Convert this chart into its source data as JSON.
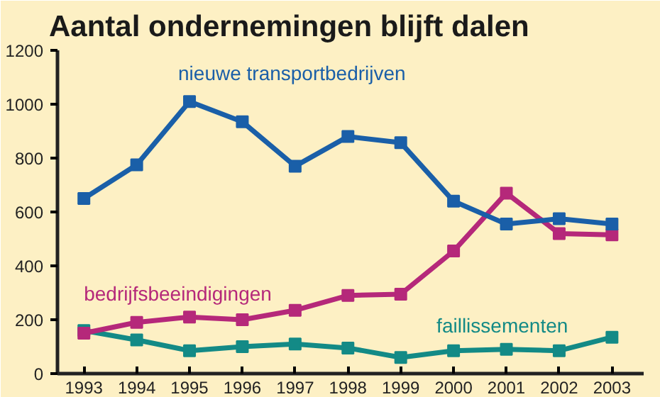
{
  "chart_data": {
    "type": "line",
    "title": "Aantal ondernemingen blijft dalen",
    "x": [
      1993,
      1994,
      1995,
      1996,
      1997,
      1998,
      1999,
      2000,
      2001,
      2002,
      2003
    ],
    "xlim": [
      1992.5,
      2003.6
    ],
    "xticks": [
      1993,
      1994,
      1995,
      1996,
      1997,
      1998,
      1999,
      2000,
      2001,
      2002,
      2003
    ],
    "ylim": [
      0,
      1200
    ],
    "yticks": [
      0,
      200,
      400,
      600,
      800,
      1000,
      1200
    ],
    "grid": false,
    "legend": false,
    "marker": "square",
    "line_style": "solid",
    "series": [
      {
        "name": "nieuwe transportbedrijven",
        "color": "#1a5fa8",
        "values": [
          650,
          775,
          1010,
          935,
          770,
          880,
          857,
          640,
          555,
          575,
          555
        ]
      },
      {
        "name": "bedrijfsbeeindigingen",
        "color": "#b5287a",
        "values": [
          150,
          190,
          210,
          200,
          235,
          290,
          295,
          455,
          670,
          520,
          515
        ]
      },
      {
        "name": "faillissementen",
        "color": "#138a86",
        "values": [
          160,
          125,
          85,
          100,
          110,
          95,
          60,
          85,
          90,
          85,
          135
        ]
      }
    ]
  }
}
